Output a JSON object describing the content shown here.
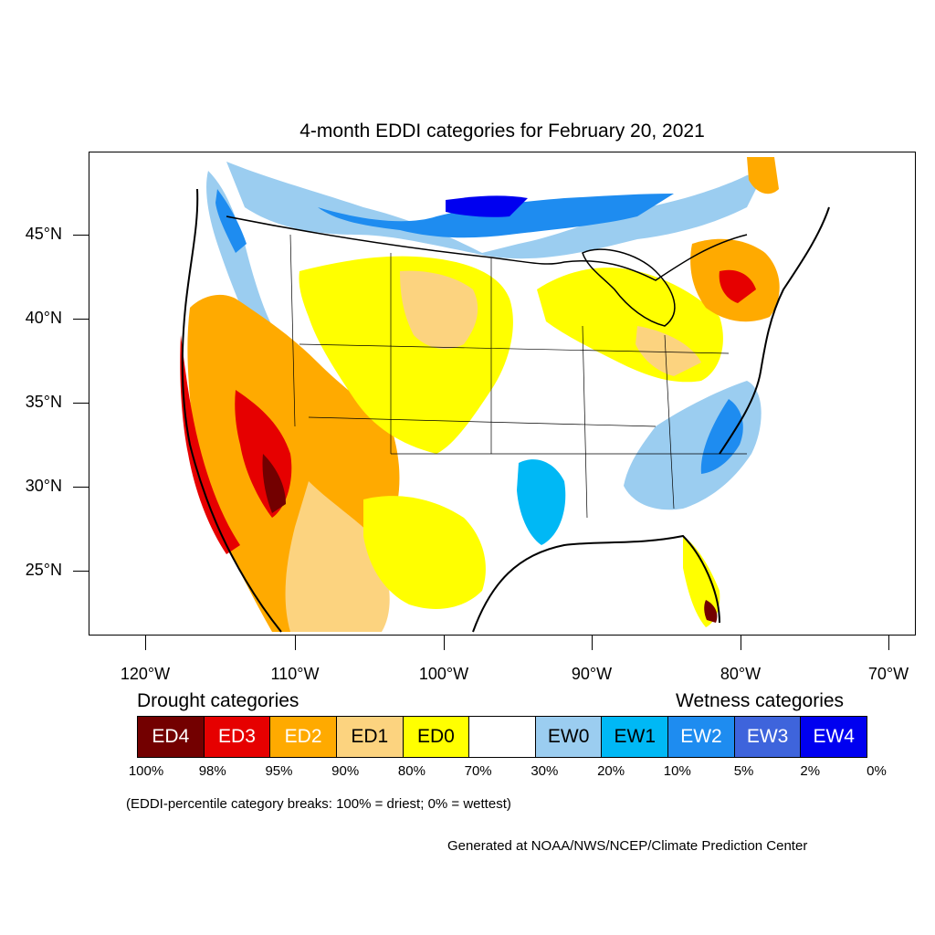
{
  "title": "4-month EDDI categories for February 20, 2021",
  "lat_ticks": [
    "45°N",
    "40°N",
    "35°N",
    "30°N",
    "25°N"
  ],
  "lon_ticks": [
    "120°W",
    "110°W",
    "100°W",
    "90°W",
    "80°W",
    "70°W"
  ],
  "legend": {
    "drought_heading": "Drought categories",
    "wetness_heading": "Wetness categories",
    "categories": [
      {
        "label": "ED4",
        "color": "#730000",
        "text_color": "#ffffff"
      },
      {
        "label": "ED3",
        "color": "#e60000",
        "text_color": "#ffffff"
      },
      {
        "label": "ED2",
        "color": "#ffaa00",
        "text_color": "#ffffff"
      },
      {
        "label": "ED1",
        "color": "#fcd37f",
        "text_color": "#000000"
      },
      {
        "label": "ED0",
        "color": "#ffff00",
        "text_color": "#000000"
      },
      {
        "label": "",
        "color": "#ffffff",
        "text_color": "#000000"
      },
      {
        "label": "EW0",
        "color": "#9bcdf0",
        "text_color": "#000000"
      },
      {
        "label": "EW1",
        "color": "#00b8f5",
        "text_color": "#000000"
      },
      {
        "label": "EW2",
        "color": "#1e8cf0",
        "text_color": "#ffffff"
      },
      {
        "label": "EW3",
        "color": "#3e64dc",
        "text_color": "#ffffff"
      },
      {
        "label": "EW4",
        "color": "#0000f0",
        "text_color": "#ffffff"
      }
    ],
    "percent_breaks": [
      "100%",
      "98%",
      "95%",
      "90%",
      "80%",
      "70%",
      "30%",
      "20%",
      "10%",
      "5%",
      "2%",
      "0%"
    ]
  },
  "note": "(EDDI-percentile category breaks: 100% = driest; 0% = wettest)",
  "credit": "Generated at NOAA/NWS/NCEP/Climate Prediction Center"
}
